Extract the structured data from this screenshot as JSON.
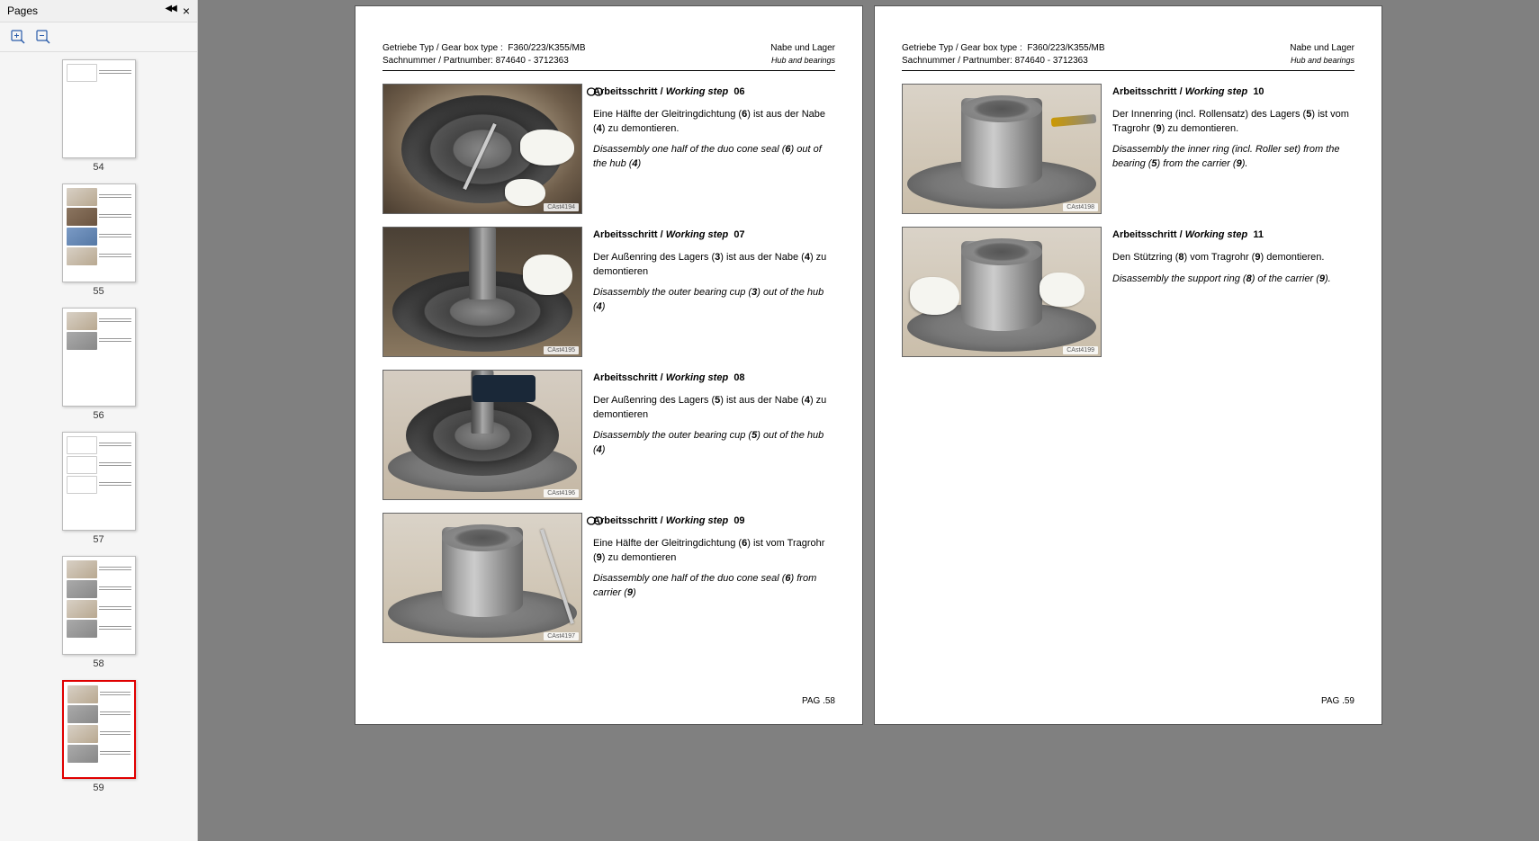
{
  "sidebar": {
    "title": "Pages",
    "collapse_icon": "◀◀",
    "close_icon": "×",
    "thumbnails": [
      {
        "num": "54",
        "selected": false,
        "rows": 1,
        "style": "diagram"
      },
      {
        "num": "55",
        "selected": false,
        "rows": 4,
        "style": "mixed"
      },
      {
        "num": "56",
        "selected": false,
        "rows": 2,
        "style": "gray"
      },
      {
        "num": "57",
        "selected": false,
        "rows": 3,
        "style": "diagram"
      },
      {
        "num": "58",
        "selected": false,
        "rows": 4,
        "style": "gray"
      },
      {
        "num": "59",
        "selected": true,
        "rows": 4,
        "style": "gray"
      }
    ]
  },
  "header": {
    "gearbox_label": "Getriebe Typ / Gear box type :",
    "gearbox_value": "F360/223/K355/MB",
    "partnumber_label": "Sachnummer / Partnumber:",
    "partnumber_value": "874640 - 3712363",
    "section_de": "Nabe und Lager",
    "section_en": "Hub and bearings"
  },
  "pages": [
    {
      "footer": "PAG .58",
      "steps": [
        {
          "num": "06",
          "title_de": "Arbeitsschritt /",
          "title_en": "Working step",
          "icon": true,
          "de": "Eine Hälfte der Gleitringdichtung (6) ist aus der Nabe (4) zu demontieren.",
          "en": "Disassembly one half of the duo cone seal (6) out of the hub (4)",
          "img_ref": "CAst4194",
          "img_variant": "hub-glove"
        },
        {
          "num": "07",
          "title_de": "Arbeitsschritt /",
          "title_en": "Working step",
          "icon": false,
          "de": "Der Außenring des Lagers (3) ist aus der Nabe (4) zu demontieren",
          "en": "Disassembly the outer bearing cup (3) out of the hub (4)",
          "img_ref": "CAst4195",
          "img_variant": "press"
        },
        {
          "num": "08",
          "title_de": "Arbeitsschritt /",
          "title_en": "Working step",
          "icon": false,
          "de": "Der Außenring des Lagers (5) ist aus der Nabe (4) zu demontieren",
          "en": "Disassembly the outer bearing cup (5) out of the hub (4)",
          "img_ref": "CAst4196",
          "img_variant": "press-flange"
        },
        {
          "num": "09",
          "title_de": "Arbeitsschritt /",
          "title_en": "Working step",
          "icon": true,
          "de": "Eine Hälfte der Gleitringdichtung (6) ist vom Tragrohr (9) zu demontieren",
          "en": "Disassembly one half of the duo cone seal (6) from carrier (9)",
          "img_ref": "CAst4197",
          "img_variant": "carrier-pry"
        }
      ]
    },
    {
      "footer": "PAG .59",
      "steps": [
        {
          "num": "10",
          "title_de": "Arbeitsschritt /",
          "title_en": "Working step",
          "icon": false,
          "de": "Der Innenring (incl. Rollensatz) des Lagers (5) ist vom Tragrohr (9) zu demontieren.",
          "en": "Disassembly the inner ring (incl. Roller set) from the bearing (5) from the carrier (9).",
          "img_ref": "CAst4198",
          "img_variant": "carrier-torch"
        },
        {
          "num": "11",
          "title_de": "Arbeitsschritt /",
          "title_en": "Working step",
          "icon": false,
          "de": "Den Stützring (8) vom Tragrohr (9) demontieren.",
          "en": "Disassembly the support ring (8) of the carrier (9).",
          "img_ref": "CAst4199",
          "img_variant": "carrier-glove"
        }
      ]
    }
  ]
}
